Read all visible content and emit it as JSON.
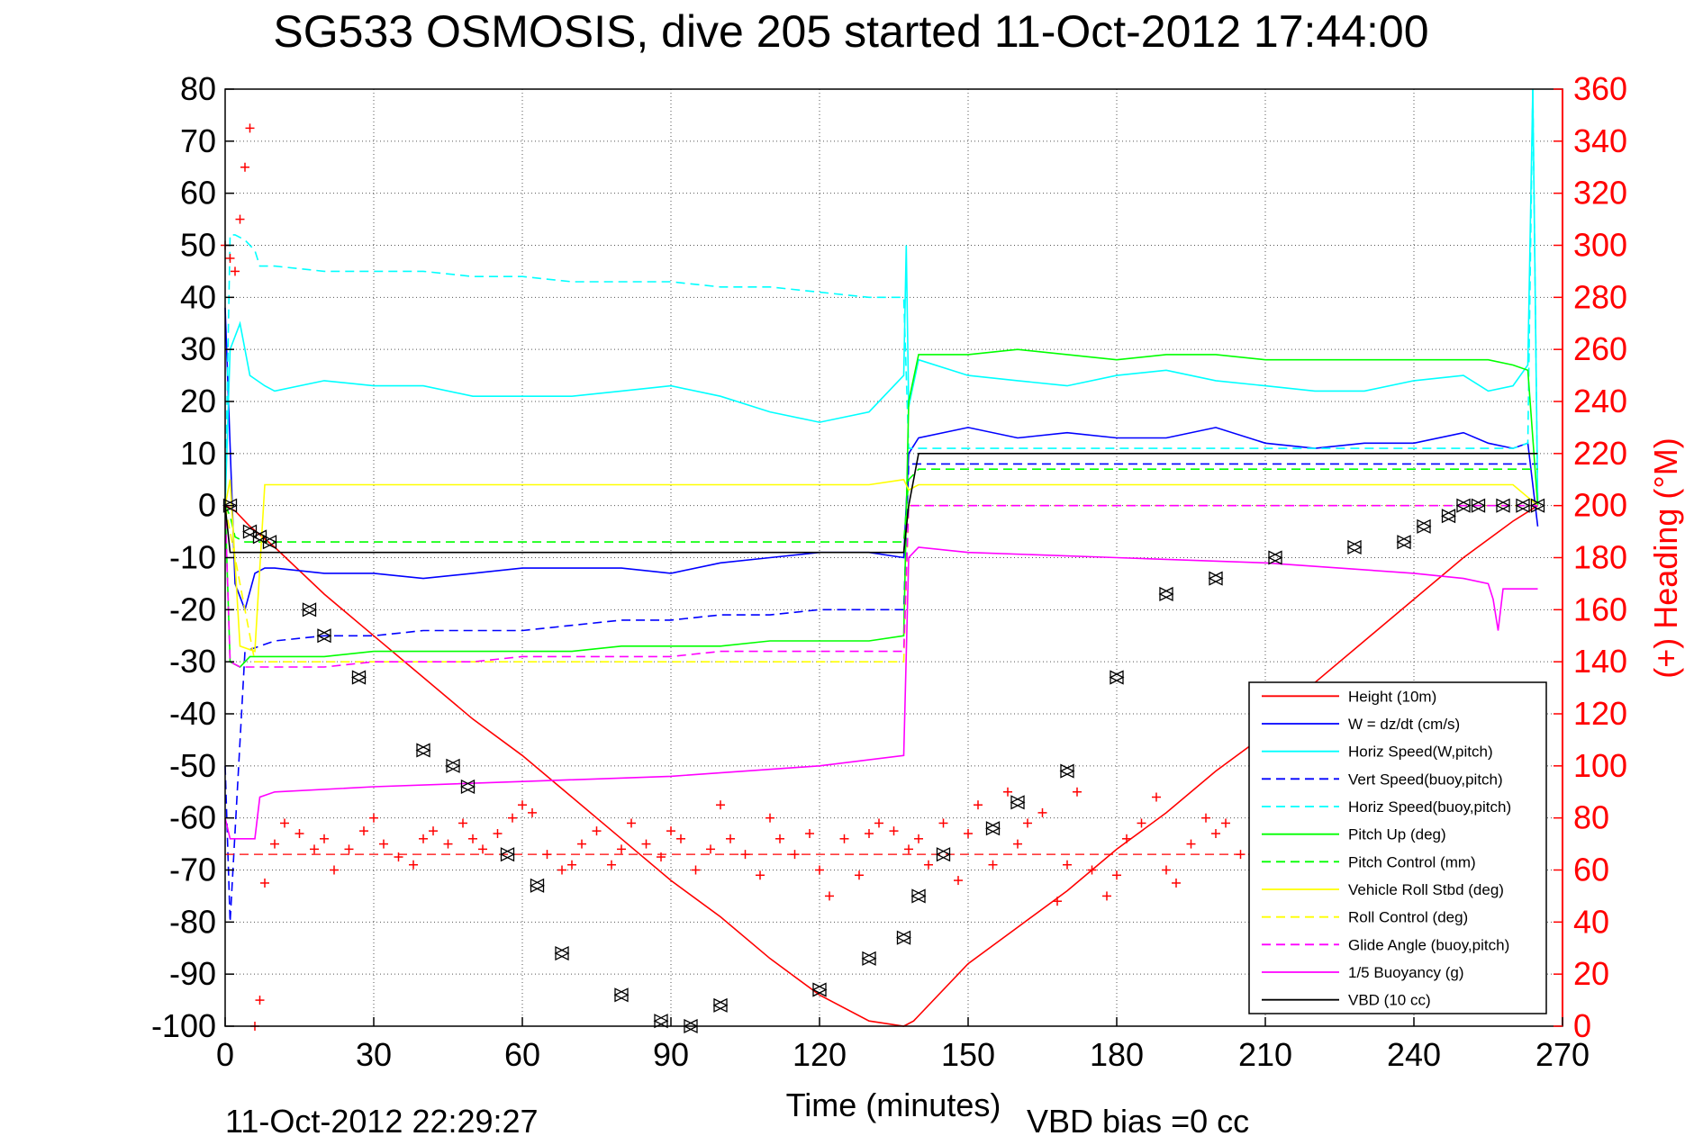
{
  "chart_data": {
    "type": "line",
    "title": "SG533 OSMOSIS, dive 205 started 11-Oct-2012 17:44:00",
    "xlabel": "Time (minutes)",
    "ylabel": "",
    "y2label": "(+) Heading (°M)",
    "xlim": [
      0,
      270
    ],
    "ylim": [
      -100,
      80
    ],
    "y2lim": [
      0,
      360
    ],
    "xticks": [
      "0",
      "30",
      "60",
      "90",
      "120",
      "150",
      "180",
      "210",
      "240",
      "270"
    ],
    "yticks": [
      "80",
      "70",
      "60",
      "50",
      "40",
      "30",
      "20",
      "10",
      "0",
      "-10",
      "-20",
      "-30",
      "-40",
      "-50",
      "-60",
      "-70",
      "-80",
      "-90",
      "-100"
    ],
    "y2ticks": [
      "360",
      "340",
      "320",
      "300",
      "280",
      "260",
      "240",
      "220",
      "200",
      "180",
      "160",
      "140",
      "120",
      "100",
      "80",
      "60",
      "40",
      "20",
      "0"
    ],
    "grid": true,
    "legend_position": "bottom-right",
    "footer_left": "11-Oct-2012 22:29:27",
    "footer_right": "VBD bias =0 cc",
    "colors": {
      "red": "#ff0000",
      "blue": "#0000ff",
      "cyan": "#00ffff",
      "green": "#00ff00",
      "yellow": "#ffff00",
      "magenta": "#ff00ff",
      "black": "#000000"
    },
    "series": [
      {
        "name": "Height (10m)",
        "color": "#ff0000",
        "dash": false,
        "x": [
          0,
          2,
          5,
          10,
          20,
          30,
          40,
          50,
          60,
          70,
          80,
          90,
          100,
          110,
          120,
          130,
          137,
          139,
          150,
          160,
          170,
          180,
          190,
          200,
          210,
          220,
          230,
          240,
          250,
          260,
          265
        ],
        "y": [
          0,
          -1,
          -4,
          -8,
          -17,
          -25,
          -33,
          -41,
          -48,
          -56,
          -64,
          -72,
          -79,
          -87,
          -94,
          -99,
          -100,
          -99,
          -88,
          -81,
          -74,
          -66,
          -59,
          -51,
          -44,
          -34,
          -26,
          -18,
          -10,
          -3,
          0
        ]
      },
      {
        "name": "W = dz/dt (cm/s)",
        "color": "#0000ff",
        "dash": false,
        "x": [
          0,
          2,
          4,
          6,
          8,
          10,
          20,
          30,
          40,
          50,
          60,
          70,
          80,
          90,
          100,
          110,
          120,
          130,
          137,
          138,
          140,
          150,
          160,
          170,
          180,
          190,
          200,
          210,
          220,
          230,
          240,
          250,
          255,
          260,
          263,
          265
        ],
        "y": [
          38,
          -15,
          -20,
          -13,
          -12,
          -12,
          -13,
          -13,
          -14,
          -13,
          -12,
          -12,
          -12,
          -13,
          -11,
          -10,
          -9,
          -9,
          -10,
          10,
          13,
          15,
          13,
          14,
          13,
          13,
          15,
          12,
          11,
          12,
          12,
          14,
          12,
          11,
          12,
          -4
        ]
      },
      {
        "name": "Horiz Speed(W,pitch)",
        "color": "#00ffff",
        "dash": false,
        "x": [
          0,
          1,
          3,
          5,
          8,
          10,
          20,
          30,
          40,
          50,
          60,
          70,
          80,
          90,
          100,
          110,
          120,
          130,
          137,
          137.5,
          138,
          140,
          150,
          160,
          170,
          180,
          190,
          200,
          210,
          220,
          230,
          240,
          250,
          255,
          260,
          263,
          264,
          265
        ],
        "y": [
          0,
          30,
          35,
          25,
          23,
          22,
          24,
          23,
          23,
          21,
          21,
          21,
          22,
          23,
          21,
          18,
          16,
          18,
          25,
          50,
          19,
          28,
          25,
          24,
          23,
          25,
          26,
          24,
          23,
          22,
          22,
          24,
          25,
          22,
          23,
          27,
          80,
          0
        ]
      },
      {
        "name": "Vert Speed(buoy,pitch)",
        "color": "#0000ff",
        "dash": true,
        "x": [
          0,
          1,
          4,
          7,
          10,
          20,
          30,
          40,
          50,
          60,
          70,
          80,
          90,
          100,
          110,
          120,
          130,
          137,
          138,
          140,
          150,
          160,
          170,
          180,
          190,
          200,
          210,
          220,
          230,
          240,
          250,
          255,
          260,
          265
        ],
        "y": [
          -50,
          -80,
          -28,
          -27,
          -26,
          -25,
          -25,
          -24,
          -24,
          -24,
          -23,
          -22,
          -22,
          -21,
          -21,
          -20,
          -20,
          -20,
          8,
          8,
          8,
          8,
          8,
          8,
          8,
          8,
          8,
          8,
          8,
          8,
          8,
          8,
          8,
          8
        ]
      },
      {
        "name": "Horiz Speed(buoy,pitch)",
        "color": "#00ffff",
        "dash": true,
        "x": [
          0,
          1,
          2,
          4,
          6,
          7,
          10,
          20,
          30,
          40,
          50,
          60,
          70,
          80,
          90,
          100,
          110,
          120,
          130,
          137,
          138,
          140,
          150,
          160,
          170,
          180,
          190,
          200,
          210,
          220,
          230,
          240,
          250,
          255,
          260,
          263,
          264,
          265
        ],
        "y": [
          0,
          52,
          52,
          51,
          49,
          46,
          46,
          45,
          45,
          45,
          44,
          44,
          43,
          43,
          43,
          42,
          42,
          41,
          40,
          40,
          11,
          11,
          11,
          11,
          11,
          11,
          11,
          11,
          11,
          11,
          11,
          11,
          11,
          11,
          11,
          12,
          80,
          0
        ]
      },
      {
        "name": "Pitch Up (deg)",
        "color": "#00ff00",
        "dash": false,
        "x": [
          0,
          1,
          3,
          5,
          7,
          10,
          20,
          30,
          40,
          50,
          60,
          70,
          80,
          90,
          100,
          110,
          120,
          130,
          137,
          138,
          140,
          150,
          160,
          170,
          180,
          190,
          200,
          210,
          220,
          230,
          240,
          250,
          255,
          260,
          263,
          265
        ],
        "y": [
          0,
          -30,
          -31,
          -29,
          -29,
          -29,
          -29,
          -28,
          -28,
          -28,
          -28,
          -28,
          -27,
          -27,
          -27,
          -26,
          -26,
          -26,
          -25,
          20,
          29,
          29,
          30,
          29,
          28,
          29,
          29,
          28,
          28,
          28,
          28,
          28,
          28,
          27,
          26,
          0
        ]
      },
      {
        "name": "Pitch Control (mm)",
        "color": "#00ff00",
        "dash": true,
        "x": [
          0,
          1,
          2,
          4,
          6,
          8,
          137,
          138,
          140,
          265
        ],
        "y": [
          0,
          -2,
          -6,
          -7,
          -7,
          -7,
          -7,
          5,
          7,
          7
        ]
      },
      {
        "name": "Vehicle Roll Stbd (deg)",
        "color": "#ffff00",
        "dash": false,
        "x": [
          0,
          1,
          3,
          6,
          8,
          10,
          20,
          30,
          40,
          50,
          60,
          70,
          80,
          90,
          100,
          110,
          120,
          130,
          137,
          138,
          140,
          150,
          160,
          170,
          180,
          190,
          200,
          210,
          220,
          230,
          240,
          250,
          255,
          260,
          265
        ],
        "y": [
          0,
          5,
          -27,
          -28,
          4,
          4,
          4,
          4,
          4,
          4,
          4,
          4,
          4,
          4,
          4,
          4,
          4,
          4,
          5,
          3,
          4,
          4,
          4,
          4,
          4,
          4,
          4,
          4,
          4,
          4,
          4,
          4,
          4,
          4,
          0
        ]
      },
      {
        "name": "Roll Control (deg)",
        "color": "#ffff00",
        "dash": true,
        "x": [
          0,
          6,
          10,
          137,
          138,
          140,
          265
        ],
        "y": [
          0,
          -30,
          -30,
          -30,
          0,
          0,
          0
        ]
      },
      {
        "name": "Glide Angle (buoy,pitch)",
        "color": "#ff00ff",
        "dash": true,
        "x": [
          0,
          1,
          3,
          6,
          10,
          20,
          30,
          40,
          50,
          60,
          70,
          80,
          90,
          100,
          110,
          120,
          130,
          137,
          138,
          140,
          265
        ],
        "y": [
          0,
          -30,
          -31,
          -31,
          -31,
          -31,
          -30,
          -30,
          -30,
          -29,
          -29,
          -29,
          -29,
          -28,
          -28,
          -28,
          -28,
          -28,
          0,
          0,
          0
        ]
      },
      {
        "name": "1/5 Buoyancy (g)",
        "color": "#ff00ff",
        "dash": false,
        "x": [
          0,
          1,
          6,
          7,
          10,
          30,
          60,
          90,
          120,
          137,
          138,
          140,
          150,
          180,
          210,
          240,
          250,
          255,
          256,
          257,
          258,
          260,
          265
        ],
        "y": [
          -60,
          -64,
          -64,
          -56,
          -55,
          -54,
          -53,
          -52,
          -50,
          -48,
          -10,
          -8,
          -9,
          -10,
          -11,
          -13,
          -14,
          -15,
          -18,
          -24,
          -16,
          -16,
          -16
        ]
      },
      {
        "name": "VBD (10 cc)",
        "color": "#000000",
        "dash": false,
        "x": [
          0,
          1,
          2,
          137,
          138,
          140,
          265
        ],
        "y": [
          0,
          -9,
          -9,
          -9,
          0,
          10,
          10
        ]
      }
    ],
    "heading": {
      "name": "(+) Heading (°M)",
      "color": "#ff0000",
      "mean_line": 66,
      "x": [
        0,
        1,
        2,
        3,
        4,
        5,
        6,
        7,
        8,
        10,
        12,
        15,
        18,
        20,
        22,
        25,
        28,
        30,
        32,
        35,
        38,
        40,
        42,
        45,
        48,
        50,
        52,
        55,
        58,
        60,
        62,
        65,
        68,
        70,
        72,
        75,
        78,
        80,
        82,
        85,
        88,
        90,
        92,
        95,
        98,
        100,
        102,
        105,
        108,
        110,
        112,
        115,
        118,
        120,
        122,
        125,
        128,
        130,
        132,
        135,
        138,
        140,
        142,
        145,
        148,
        150,
        152,
        155,
        158,
        160,
        162,
        165,
        168,
        170,
        172,
        175,
        178,
        180,
        182,
        185,
        188,
        190,
        192,
        195,
        198,
        200,
        202,
        205,
        208,
        210
      ],
      "y": [
        300,
        295,
        290,
        310,
        330,
        345,
        0,
        10,
        55,
        70,
        78,
        74,
        68,
        72,
        60,
        68,
        75,
        80,
        70,
        65,
        62,
        72,
        75,
        70,
        78,
        72,
        68,
        74,
        80,
        85,
        82,
        66,
        60,
        62,
        70,
        75,
        62,
        68,
        78,
        70,
        65,
        75,
        72,
        60,
        68,
        85,
        72,
        66,
        58,
        80,
        72,
        66,
        74,
        60,
        50,
        72,
        58,
        74,
        78,
        75,
        68,
        72,
        62,
        78,
        56,
        74,
        85,
        62,
        90,
        70,
        78,
        82,
        48,
        62,
        90,
        60,
        50,
        58,
        72,
        78,
        88,
        60,
        55,
        70,
        80,
        74,
        78,
        66,
        58,
        60
      ]
    },
    "markers": {
      "name": "Height markers",
      "color": "#000000",
      "x": [
        1,
        5,
        7,
        9,
        17,
        20,
        27,
        40,
        46,
        49,
        57,
        63,
        68,
        80,
        88,
        94,
        100,
        120,
        130,
        137,
        140,
        145,
        155,
        160,
        170,
        180,
        190,
        200,
        212,
        228,
        238,
        242,
        247,
        250,
        253,
        258,
        262,
        265
      ],
      "y": [
        0,
        -5,
        -6,
        -7,
        -20,
        -25,
        -33,
        -47,
        -50,
        -54,
        -67,
        -73,
        -86,
        -94,
        -99,
        -100,
        -96,
        -93,
        -87,
        -83,
        -75,
        -67,
        -62,
        -57,
        -51,
        -33,
        -17,
        -14,
        -10,
        -8,
        -7,
        -4,
        -2,
        0,
        0,
        0,
        0,
        0
      ]
    }
  }
}
